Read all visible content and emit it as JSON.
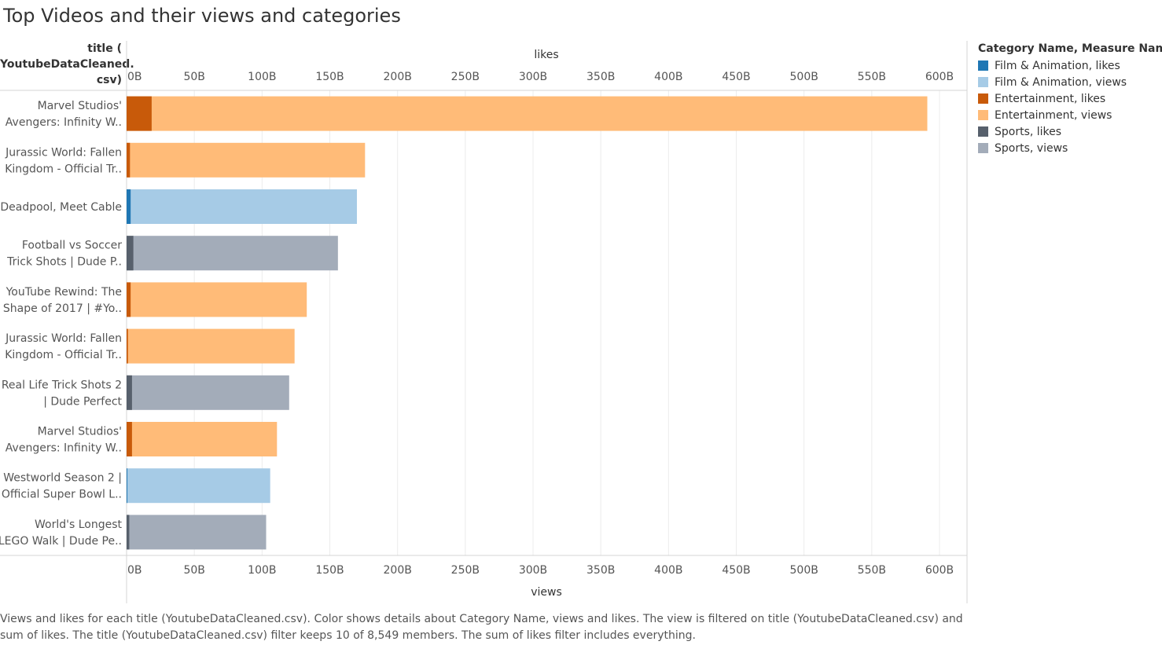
{
  "title": "Top Videos and their views and categories",
  "row_header": "title (\nYoutubeDataCleaned.\ncsv)",
  "caption": "Views and likes for each title (YoutubeDataCleaned.csv).  Color shows details about Category Name, views and likes. The view is filtered on title (YoutubeDataCleaned.csv) and sum of likes. The title (YoutubeDataCleaned.csv) filter keeps 10 of 8,549 members. The sum of likes filter includes everything.",
  "legend": {
    "title": "Category Name, Measure Names",
    "items": [
      {
        "label": "Film & Animation, likes",
        "color": "#1f77b4"
      },
      {
        "label": "Film & Animation, views",
        "color": "#a6cbe6"
      },
      {
        "label": "Entertainment, likes",
        "color": "#c85a0a"
      },
      {
        "label": "Entertainment, views",
        "color": "#ffbb78"
      },
      {
        "label": "Sports, likes",
        "color": "#57606c"
      },
      {
        "label": "Sports, views",
        "color": "#a3acb9"
      }
    ]
  },
  "chart_data": {
    "type": "bar",
    "orientation": "horizontal",
    "top_axis_label": "likes",
    "bottom_axis_label": "views",
    "xlim": [
      0,
      620
    ],
    "unit": "B",
    "ticks": [
      "0B",
      "50B",
      "100B",
      "150B",
      "200B",
      "250B",
      "300B",
      "350B",
      "400B",
      "450B",
      "500B",
      "550B",
      "600B"
    ],
    "tick_values": [
      0,
      50,
      100,
      150,
      200,
      250,
      300,
      350,
      400,
      450,
      500,
      550,
      600
    ],
    "grid": "vertical",
    "legend_position": "right",
    "categories": [
      [
        "Marvel Studios'",
        "Avengers: Infinity W.."
      ],
      [
        "Jurassic World: Fallen",
        "Kingdom - Official Tr.."
      ],
      [
        "Deadpool, Meet Cable"
      ],
      [
        "Football vs Soccer",
        "Trick Shots | Dude P.."
      ],
      [
        "YouTube Rewind: The",
        "Shape of 2017 | #Yo.."
      ],
      [
        "Jurassic World: Fallen",
        "Kingdom - Official Tr.."
      ],
      [
        "Real Life Trick Shots 2",
        "| Dude Perfect"
      ],
      [
        "Marvel Studios'",
        "Avengers: Infinity W.."
      ],
      [
        "Westworld Season 2 |",
        "Official Super Bowl L.."
      ],
      [
        "World's Longest",
        "LEGO Walk | Dude Pe.."
      ]
    ],
    "video_category": [
      "Entertainment",
      "Entertainment",
      "Film & Animation",
      "Sports",
      "Entertainment",
      "Entertainment",
      "Sports",
      "Entertainment",
      "Film & Animation",
      "Sports"
    ],
    "series": [
      {
        "name": "views",
        "values": [
          591,
          176,
          170,
          156,
          133,
          124,
          120,
          111,
          106,
          103
        ]
      },
      {
        "name": "likes",
        "values": [
          18.5,
          2.5,
          3.0,
          5.0,
          3.0,
          1.0,
          4.0,
          4.0,
          0.2,
          2.0
        ]
      }
    ]
  }
}
